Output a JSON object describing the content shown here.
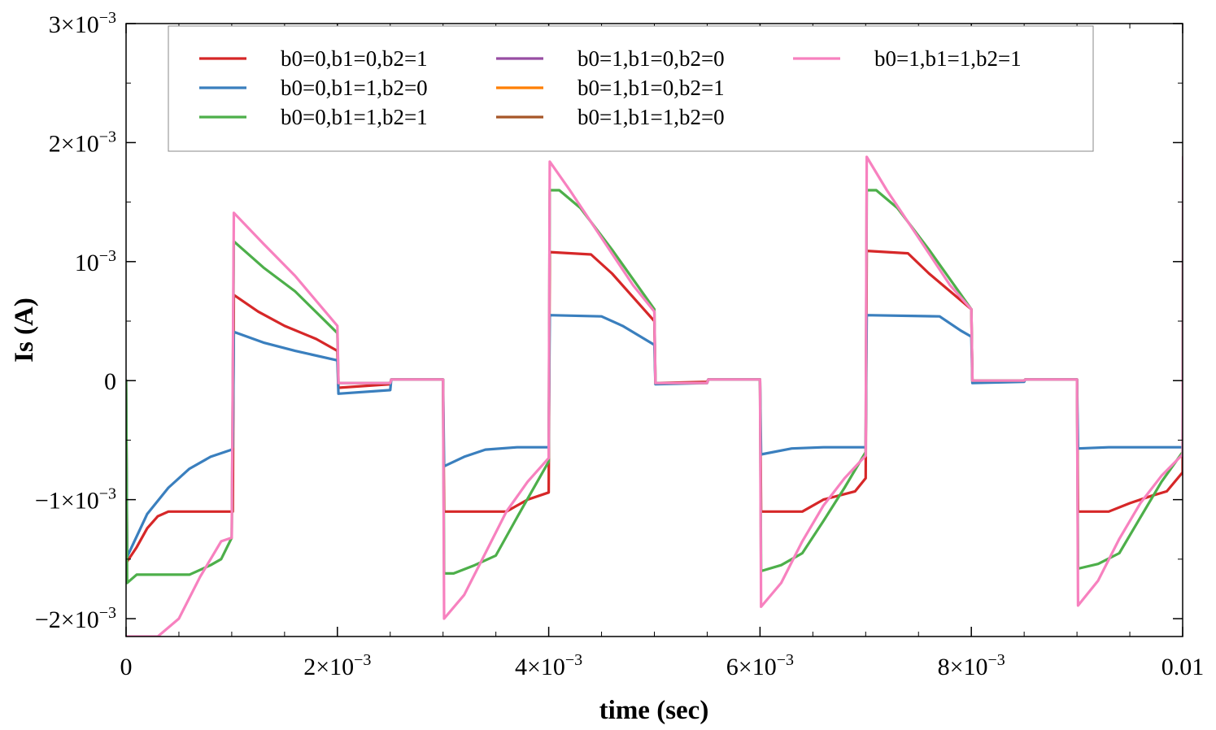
{
  "chart_data": {
    "type": "line",
    "title": "",
    "xlabel": "time (sec)",
    "ylabel": "Is (A)",
    "xlim": [
      0,
      0.01
    ],
    "ylim": [
      -0.00215,
      0.003
    ],
    "grid": false,
    "legend_position": "top",
    "x_ticks": [
      {
        "value": 0,
        "label": "0"
      },
      {
        "value": 0.002,
        "label": "2×10",
        "exp": "−3"
      },
      {
        "value": 0.004,
        "label": "4×10",
        "exp": "−3"
      },
      {
        "value": 0.006,
        "label": "6×10",
        "exp": "−3"
      },
      {
        "value": 0.008,
        "label": "8×10",
        "exp": "−3"
      },
      {
        "value": 0.01,
        "label": "0.01"
      }
    ],
    "y_ticks": [
      {
        "value": -0.002,
        "label": "−2×10",
        "exp": "−3"
      },
      {
        "value": -0.001,
        "label": "−1×10",
        "exp": "−3"
      },
      {
        "value": 0,
        "label": "0"
      },
      {
        "value": 0.001,
        "label": "10",
        "exp": "−3"
      },
      {
        "value": 0.002,
        "label": "2×10",
        "exp": "−3"
      },
      {
        "value": 0.003,
        "label": "3×10",
        "exp": "−3"
      }
    ],
    "series": [
      {
        "name": "b0=0,b1=0,b2=1",
        "color": "#d62728",
        "points": [
          [
            0,
            0
          ],
          [
            1e-05,
            -0.00152
          ],
          [
            0.0001,
            -0.0014
          ],
          [
            0.0002,
            -0.00124
          ],
          [
            0.0003,
            -0.00114
          ],
          [
            0.0004,
            -0.0011
          ],
          [
            0.0005,
            -0.0011
          ],
          [
            0.00101,
            -0.0011
          ],
          [
            0.00102,
            0.00072
          ],
          [
            0.00125,
            0.00058
          ],
          [
            0.0015,
            0.00046
          ],
          [
            0.0018,
            0.00035
          ],
          [
            0.002,
            0.00025
          ],
          [
            0.00201,
            -6e-05
          ],
          [
            0.0025,
            -3e-05
          ],
          [
            0.00251,
            1e-05
          ],
          [
            0.003,
            1e-05
          ],
          [
            0.00301,
            -0.0011
          ],
          [
            0.0036,
            -0.0011
          ],
          [
            0.0038,
            -0.001
          ],
          [
            0.004,
            -0.00094
          ],
          [
            0.00401,
            0.00108
          ],
          [
            0.0044,
            0.00106
          ],
          [
            0.0046,
            0.0009
          ],
          [
            0.005,
            0.0005
          ],
          [
            0.00501,
            -2e-05
          ],
          [
            0.0055,
            -1e-05
          ],
          [
            0.00551,
            1e-05
          ],
          [
            0.006,
            1e-05
          ],
          [
            0.00601,
            -0.0011
          ],
          [
            0.0064,
            -0.0011
          ],
          [
            0.0066,
            -0.001
          ],
          [
            0.0069,
            -0.00093
          ],
          [
            0.007,
            -0.00082
          ],
          [
            0.00701,
            0.00109
          ],
          [
            0.0074,
            0.00107
          ],
          [
            0.0076,
            0.0009
          ],
          [
            0.008,
            0.0006
          ],
          [
            0.00801,
            0.0
          ],
          [
            0.0085,
            0.0
          ],
          [
            0.00851,
            1e-05
          ],
          [
            0.009,
            1e-05
          ],
          [
            0.00901,
            -0.0011
          ],
          [
            0.0093,
            -0.0011
          ],
          [
            0.0095,
            -0.00103
          ],
          [
            0.0097,
            -0.00097
          ],
          [
            0.00985,
            -0.00093
          ],
          [
            0.01,
            -0.00077
          ],
          [
            0.010005,
            0.00105
          ]
        ]
      },
      {
        "name": "b0=0,b1=1,b2=0",
        "color": "#3a7fbe",
        "points": [
          [
            0,
            0
          ],
          [
            1e-05,
            -0.00148
          ],
          [
            0.0002,
            -0.00112
          ],
          [
            0.0004,
            -0.0009
          ],
          [
            0.0006,
            -0.00074
          ],
          [
            0.0008,
            -0.00064
          ],
          [
            0.001,
            -0.00058
          ],
          [
            0.00101,
            -0.00056
          ],
          [
            0.00102,
            0.00041
          ],
          [
            0.0013,
            0.00032
          ],
          [
            0.0016,
            0.00025
          ],
          [
            0.002,
            0.00017
          ],
          [
            0.00201,
            -0.00011
          ],
          [
            0.0025,
            -8e-05
          ],
          [
            0.00251,
            1e-05
          ],
          [
            0.003,
            1e-05
          ],
          [
            0.00301,
            -0.00072
          ],
          [
            0.0032,
            -0.00064
          ],
          [
            0.0034,
            -0.00058
          ],
          [
            0.0037,
            -0.00056
          ],
          [
            0.004,
            -0.00056
          ],
          [
            0.00401,
            0.00055
          ],
          [
            0.0045,
            0.00054
          ],
          [
            0.0047,
            0.00046
          ],
          [
            0.005,
            0.0003
          ],
          [
            0.00501,
            -3e-05
          ],
          [
            0.0055,
            -2e-05
          ],
          [
            0.00551,
            1e-05
          ],
          [
            0.006,
            1e-05
          ],
          [
            0.00601,
            -0.00062
          ],
          [
            0.0063,
            -0.00057
          ],
          [
            0.0066,
            -0.00056
          ],
          [
            0.007,
            -0.00056
          ],
          [
            0.00701,
            0.00055
          ],
          [
            0.0077,
            0.00054
          ],
          [
            0.0079,
            0.00042
          ],
          [
            0.008,
            0.00037
          ],
          [
            0.00801,
            -2e-05
          ],
          [
            0.0085,
            -1e-05
          ],
          [
            0.00851,
            1e-05
          ],
          [
            0.009,
            1e-05
          ],
          [
            0.00901,
            -0.00057
          ],
          [
            0.0093,
            -0.00056
          ],
          [
            0.0097,
            -0.00056
          ],
          [
            0.01,
            -0.00056
          ]
        ]
      },
      {
        "name": "b0=0,b1=1,b2=1",
        "color": "#4daf4a",
        "points": [
          [
            0,
            0
          ],
          [
            1e-05,
            -0.0017
          ],
          [
            0.0001,
            -0.00163
          ],
          [
            0.0006,
            -0.00163
          ],
          [
            0.0008,
            -0.00155
          ],
          [
            0.0009,
            -0.0015
          ],
          [
            0.001,
            -0.00132
          ],
          [
            0.00102,
            0.00117
          ],
          [
            0.0013,
            0.00095
          ],
          [
            0.0016,
            0.00075
          ],
          [
            0.002,
            0.0004
          ],
          [
            0.00201,
            -2e-05
          ],
          [
            0.0025,
            -2e-05
          ],
          [
            0.00251,
            1e-05
          ],
          [
            0.003,
            1e-05
          ],
          [
            0.00301,
            -0.00162
          ],
          [
            0.0031,
            -0.00162
          ],
          [
            0.0033,
            -0.00155
          ],
          [
            0.0035,
            -0.00147
          ],
          [
            0.0037,
            -0.00115
          ],
          [
            0.004,
            -0.00068
          ],
          [
            0.00401,
            0.0016
          ],
          [
            0.0041,
            0.0016
          ],
          [
            0.0043,
            0.00145
          ],
          [
            0.0046,
            0.0011
          ],
          [
            0.005,
            0.0006
          ],
          [
            0.00501,
            -2e-05
          ],
          [
            0.0055,
            -2e-05
          ],
          [
            0.00551,
            1e-05
          ],
          [
            0.006,
            1e-05
          ],
          [
            0.00601,
            -0.0016
          ],
          [
            0.0062,
            -0.00155
          ],
          [
            0.0064,
            -0.00145
          ],
          [
            0.0066,
            -0.00118
          ],
          [
            0.0068,
            -0.0009
          ],
          [
            0.007,
            -0.0006
          ],
          [
            0.00701,
            0.0016
          ],
          [
            0.0071,
            0.0016
          ],
          [
            0.0073,
            0.00145
          ],
          [
            0.0076,
            0.0011
          ],
          [
            0.008,
            0.0006
          ],
          [
            0.00801,
            0.0
          ],
          [
            0.0085,
            0.0
          ],
          [
            0.00851,
            1e-05
          ],
          [
            0.009,
            1e-05
          ],
          [
            0.00901,
            -0.00158
          ],
          [
            0.0092,
            -0.00154
          ],
          [
            0.0094,
            -0.00145
          ],
          [
            0.0096,
            -0.00115
          ],
          [
            0.0098,
            -0.00085
          ],
          [
            0.01,
            -0.0006
          ],
          [
            0.010005,
            0.00158
          ]
        ]
      },
      {
        "name": "b0=1,b1=0,b2=0",
        "color": "#984ea3",
        "points": []
      },
      {
        "name": "b0=1,b1=0,b2=1",
        "color": "#ff7f00",
        "points": []
      },
      {
        "name": "b0=1,b1=1,b2=0",
        "color": "#a65628",
        "points": []
      },
      {
        "name": "b0=1,b1=1,b2=1",
        "color": "#f781bf",
        "points": [
          [
            0,
            -0.00215
          ],
          [
            0.0003,
            -0.00215
          ],
          [
            0.0005,
            -0.002
          ],
          [
            0.0007,
            -0.00165
          ],
          [
            0.0009,
            -0.00135
          ],
          [
            0.001,
            -0.00132
          ],
          [
            0.00102,
            0.00141
          ],
          [
            0.0013,
            0.00115
          ],
          [
            0.0016,
            0.00088
          ],
          [
            0.002,
            0.00046
          ],
          [
            0.00201,
            -2e-05
          ],
          [
            0.0025,
            -2e-05
          ],
          [
            0.00251,
            1e-05
          ],
          [
            0.003,
            1e-05
          ],
          [
            0.00301,
            -0.002
          ],
          [
            0.0032,
            -0.0018
          ],
          [
            0.0034,
            -0.00145
          ],
          [
            0.0036,
            -0.0011
          ],
          [
            0.0038,
            -0.00085
          ],
          [
            0.004,
            -0.00065
          ],
          [
            0.00401,
            0.00184
          ],
          [
            0.0042,
            0.0016
          ],
          [
            0.0045,
            0.0012
          ],
          [
            0.0048,
            0.0008
          ],
          [
            0.005,
            0.00058
          ],
          [
            0.00501,
            -2e-05
          ],
          [
            0.0055,
            -2e-05
          ],
          [
            0.00551,
            1e-05
          ],
          [
            0.006,
            1e-05
          ],
          [
            0.00601,
            -0.0019
          ],
          [
            0.0062,
            -0.0017
          ],
          [
            0.0064,
            -0.00135
          ],
          [
            0.0066,
            -0.00105
          ],
          [
            0.0068,
            -0.00082
          ],
          [
            0.007,
            -0.00063
          ],
          [
            0.00701,
            0.00188
          ],
          [
            0.0072,
            0.0016
          ],
          [
            0.0075,
            0.0012
          ],
          [
            0.0078,
            0.0008
          ],
          [
            0.008,
            0.0006
          ],
          [
            0.00801,
            0.0
          ],
          [
            0.0085,
            0.0
          ],
          [
            0.00851,
            1e-05
          ],
          [
            0.009,
            1e-05
          ],
          [
            0.00901,
            -0.00189
          ],
          [
            0.0092,
            -0.00168
          ],
          [
            0.0094,
            -0.00133
          ],
          [
            0.0096,
            -0.00103
          ],
          [
            0.0098,
            -0.0008
          ],
          [
            0.01,
            -0.00062
          ],
          [
            0.010005,
            0.00188
          ]
        ]
      }
    ]
  }
}
